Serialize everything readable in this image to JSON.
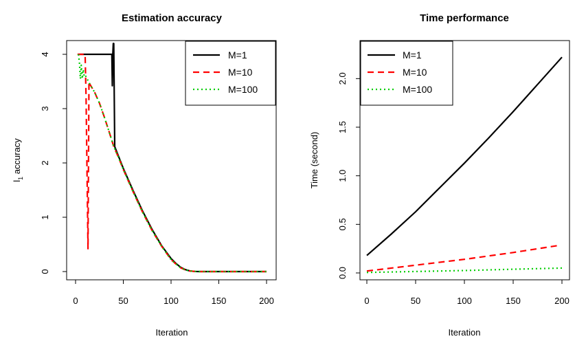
{
  "chart_data": [
    {
      "type": "line",
      "title": "Estimation accuracy",
      "xlabel": "Iteration",
      "ylabel_main": "l",
      "ylabel_sub": "1",
      "ylabel_rest": " accuracy",
      "xlim": [
        0,
        200
      ],
      "ylim": [
        0,
        4
      ],
      "xticks": [
        0,
        50,
        100,
        150,
        200
      ],
      "yticks": [
        0,
        1,
        2,
        3,
        4
      ],
      "legend_position": "top-right",
      "grid": false,
      "series": [
        {
          "name": "M=1",
          "color": "#000000",
          "dash": "solid",
          "x": [
            3,
            38,
            38.5,
            39,
            39.5,
            40,
            41,
            45,
            50,
            60,
            70,
            80,
            90,
            100,
            105,
            110,
            115,
            120,
            125,
            130,
            150,
            200
          ],
          "y": [
            4.0,
            4.0,
            3.42,
            4.0,
            4.2,
            4.2,
            2.3,
            2.12,
            1.9,
            1.5,
            1.12,
            0.78,
            0.48,
            0.24,
            0.15,
            0.08,
            0.035,
            0.01,
            0.002,
            0.0,
            0.0,
            0.0
          ]
        },
        {
          "name": "M=10",
          "color": "#ff0000",
          "dash": "dashed",
          "x": [
            2,
            10,
            11,
            12,
            13,
            14,
            15,
            20,
            25,
            30,
            35,
            40,
            45,
            50,
            60,
            70,
            80,
            90,
            100,
            105,
            110,
            115,
            120,
            125,
            130,
            150,
            200
          ],
          "y": [
            4.0,
            4.0,
            3.2,
            1.8,
            0.42,
            3.5,
            3.45,
            3.3,
            3.1,
            2.85,
            2.58,
            2.3,
            2.1,
            1.88,
            1.48,
            1.1,
            0.76,
            0.47,
            0.22,
            0.14,
            0.07,
            0.03,
            0.01,
            0.002,
            0.0,
            0.0,
            0.0
          ]
        },
        {
          "name": "M=100",
          "color": "#00cd00",
          "dash": "dotted",
          "x": [
            3,
            4,
            5,
            6,
            7,
            8,
            9,
            10,
            12,
            15,
            20,
            25,
            30,
            35,
            40,
            45,
            50,
            60,
            70,
            80,
            90,
            100,
            105,
            110,
            115,
            120,
            125,
            130,
            150,
            200
          ],
          "y": [
            4.0,
            3.85,
            3.55,
            3.8,
            3.55,
            3.72,
            3.6,
            3.62,
            3.55,
            3.45,
            3.3,
            3.1,
            2.85,
            2.58,
            2.3,
            2.1,
            1.88,
            1.48,
            1.1,
            0.76,
            0.47,
            0.22,
            0.14,
            0.07,
            0.03,
            0.01,
            0.002,
            0.0,
            0.0,
            0.0
          ]
        }
      ]
    },
    {
      "type": "line",
      "title": "Time performance",
      "xlabel": "Iteration",
      "ylabel": "Time (second)",
      "xlim": [
        0,
        200
      ],
      "ylim": [
        0,
        2.25
      ],
      "xticks": [
        0,
        50,
        100,
        150,
        200
      ],
      "yticks": [
        0.0,
        0.5,
        1.0,
        1.5,
        2.0
      ],
      "ytick_labels": [
        "0.0",
        "0.5",
        "1.0",
        "1.5",
        "2.0"
      ],
      "legend_position": "top-left",
      "grid": false,
      "series": [
        {
          "name": "M=1",
          "color": "#000000",
          "dash": "solid",
          "x": [
            0,
            25,
            50,
            75,
            100,
            125,
            150,
            175,
            200
          ],
          "y": [
            0.18,
            0.4,
            0.63,
            0.88,
            1.13,
            1.39,
            1.66,
            1.94,
            2.22
          ]
        },
        {
          "name": "M=10",
          "color": "#ff0000",
          "dash": "dashed",
          "x": [
            0,
            50,
            100,
            150,
            195
          ],
          "y": [
            0.02,
            0.08,
            0.14,
            0.21,
            0.28
          ]
        },
        {
          "name": "M=100",
          "color": "#00cd00",
          "dash": "dotted",
          "x": [
            0,
            50,
            100,
            150,
            200
          ],
          "y": [
            0.005,
            0.015,
            0.025,
            0.038,
            0.05
          ]
        }
      ]
    }
  ]
}
